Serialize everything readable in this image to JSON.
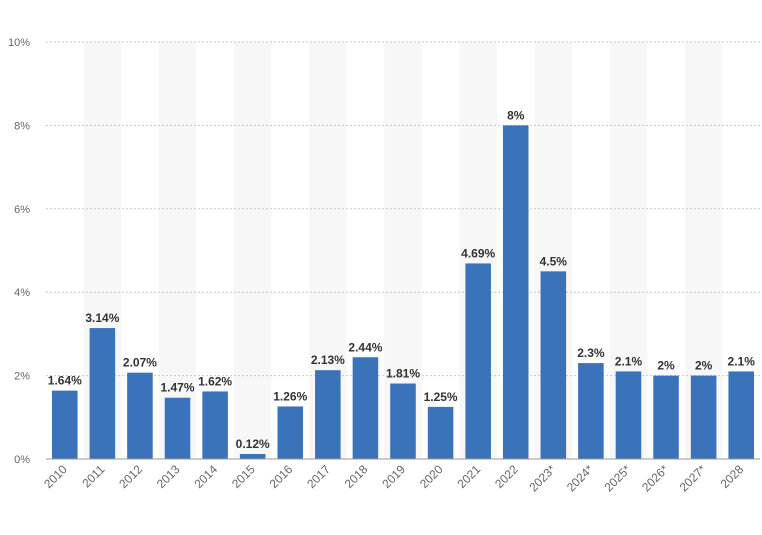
{
  "chart_data": {
    "type": "bar",
    "title": "",
    "xlabel": "",
    "ylabel": "",
    "categories": [
      "2010",
      "2011",
      "2012",
      "2013",
      "2014",
      "2015",
      "2016",
      "2017",
      "2018",
      "2019",
      "2020",
      "2021",
      "2022",
      "2023*",
      "2024*",
      "2025*",
      "2026*",
      "2027*",
      "2028"
    ],
    "values": [
      1.64,
      3.14,
      2.07,
      1.47,
      1.62,
      0.12,
      1.26,
      2.13,
      2.44,
      1.81,
      1.25,
      4.69,
      8,
      4.5,
      2.3,
      2.1,
      2,
      2,
      2.1
    ],
    "data_labels": [
      "1.64%",
      "3.14%",
      "2.07%",
      "1.47%",
      "1.62%",
      "0.12%",
      "1.26%",
      "2.13%",
      "2.44%",
      "1.81%",
      "1.25%",
      "4.69%",
      "8%",
      "4.5%",
      "2.3%",
      "2.1%",
      "2%",
      "2%",
      "2.1%"
    ],
    "ylim": [
      0,
      10
    ],
    "yticks": [
      0,
      2,
      4,
      6,
      8,
      10
    ],
    "ytick_labels": [
      "0%",
      "2%",
      "4%",
      "6%",
      "8%",
      "10%"
    ],
    "grid": true,
    "legend": "none",
    "colors": {
      "bar": "#3a73ba",
      "grid": "#c8c8c8",
      "column_shade": "#f7f7f7",
      "label": "#333333",
      "tick": "#666666"
    }
  }
}
